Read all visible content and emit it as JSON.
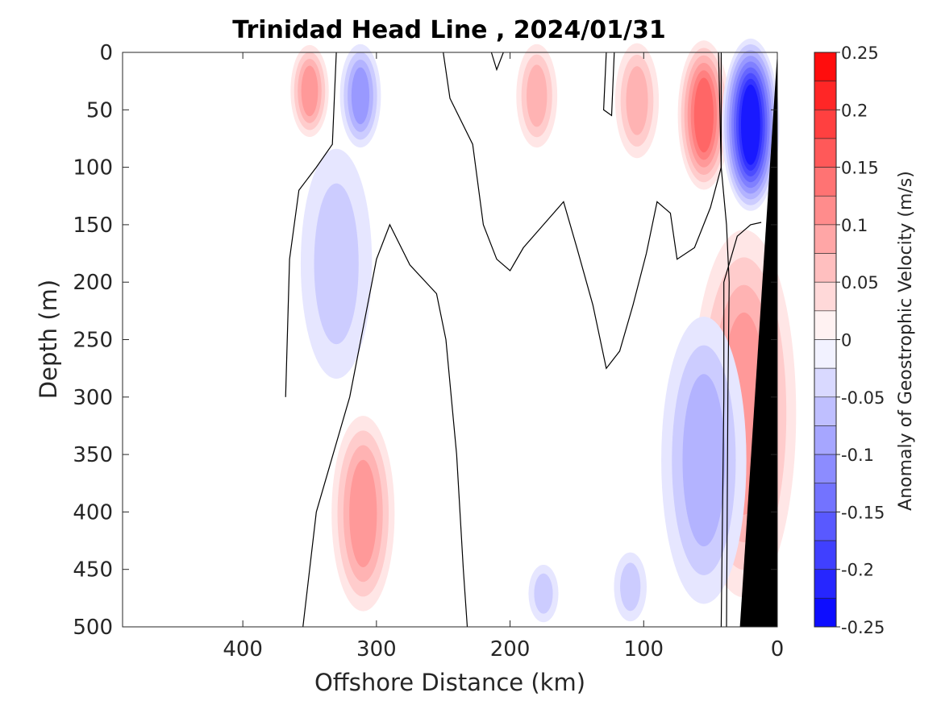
{
  "chart_data": {
    "type": "heatmap",
    "title": "Trinidad Head Line , 2024/01/31",
    "xlabel": "Offshore Distance (km)",
    "ylabel": "Depth (m)",
    "colorbar_label": "Anomaly of Geostrophic Velocity (m/s)",
    "xlim": [
      490,
      0
    ],
    "ylim": [
      500,
      0
    ],
    "x_reversed": true,
    "y_reversed": true,
    "x_ticks": [
      400,
      300,
      200,
      100,
      0
    ],
    "y_ticks": [
      0,
      50,
      100,
      150,
      200,
      250,
      300,
      350,
      400,
      450,
      500
    ],
    "colorbar_range": [
      -0.25,
      0.25
    ],
    "colorbar_ticks": [
      0.25,
      0.2,
      0.15,
      0.1,
      0.05,
      0,
      -0.05,
      -0.1,
      -0.15,
      -0.2,
      -0.25
    ],
    "colorbar_tick_labels": [
      "0.25",
      "0.2",
      "0.15",
      "0.1",
      "0.05",
      "0",
      "-0.05",
      "-0.1",
      "-0.15",
      "-0.2",
      "-0.25"
    ],
    "contour_levels": [
      0.25,
      0.225,
      0.2,
      0.175,
      0.15,
      0.125,
      0.1,
      0.075,
      0.05,
      0.025,
      0,
      -0.025,
      -0.05,
      -0.075,
      -0.1,
      -0.125,
      -0.15,
      -0.175,
      -0.2,
      -0.225,
      -0.25
    ],
    "colors": {
      "positive_max": "#ff0000",
      "negative_max": "#0000ff",
      "zero": "#ffffff",
      "bathymetry": "#000000",
      "zero_contour": "#000000"
    },
    "features": [
      {
        "label": "positive core",
        "x_km": 350,
        "depth_range_m": [
          0,
          80
        ],
        "peak": 0.1
      },
      {
        "label": "negative core",
        "x_km": 312,
        "depth_range_m": [
          0,
          90
        ],
        "peak": -0.1
      },
      {
        "label": "negative band",
        "x_km": 330,
        "depth_range_m": [
          100,
          300
        ],
        "peak": -0.05
      },
      {
        "label": "positive core",
        "x_km": 180,
        "depth_range_m": [
          0,
          90
        ],
        "peak": 0.075
      },
      {
        "label": "positive core",
        "x_km": 105,
        "depth_range_m": [
          0,
          100
        ],
        "peak": 0.075
      },
      {
        "label": "positive core",
        "x_km": 55,
        "depth_range_m": [
          0,
          130
        ],
        "peak": 0.15
      },
      {
        "label": "negative core",
        "x_km": 20,
        "depth_range_m": [
          0,
          150
        ],
        "peak": -0.225
      },
      {
        "label": "positive band",
        "x_km": 25,
        "depth_range_m": [
          180,
          500
        ],
        "peak": 0.1
      },
      {
        "label": "negative band",
        "x_km": 55,
        "depth_range_m": [
          250,
          500
        ],
        "peak": -0.075
      },
      {
        "label": "positive core",
        "x_km": 310,
        "depth_range_m": [
          330,
          500
        ],
        "peak": 0.1
      },
      {
        "label": "negative patch",
        "x_km": 175,
        "depth_range_m": [
          450,
          500
        ],
        "peak": -0.05
      },
      {
        "label": "negative patch",
        "x_km": 110,
        "depth_range_m": [
          440,
          500
        ],
        "peak": -0.05
      }
    ],
    "bathymetry": {
      "description": "continental slope",
      "points": [
        [
          0,
          0
        ],
        [
          0,
          500
        ],
        [
          28,
          500
        ]
      ]
    }
  }
}
